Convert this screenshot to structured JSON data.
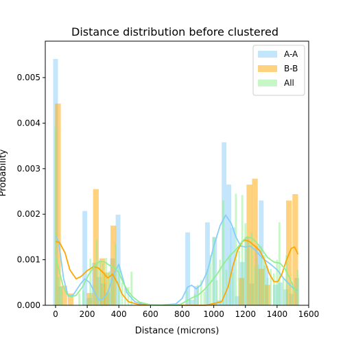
{
  "chart_data": {
    "type": "bar",
    "title": "Distance distribution before clustered",
    "xlabel": "Distance (microns)",
    "ylabel": "Probability",
    "xlim": [
      -65,
      1600
    ],
    "ylim": [
      0,
      0.0058
    ],
    "xticks": [
      0,
      200,
      400,
      600,
      800,
      1000,
      1200,
      1400,
      1600
    ],
    "xtick_labels": [
      "0",
      "200",
      "400",
      "600",
      "800",
      "1000",
      "1200",
      "1400",
      "1600"
    ],
    "yticks": [
      0,
      0.001,
      0.002,
      0.003,
      0.004,
      0.005
    ],
    "ytick_labels": [
      "0.000",
      "0.001",
      "0.002",
      "0.003",
      "0.004",
      "0.005"
    ],
    "legend_position": "top-right",
    "series": [
      {
        "name": "A-A",
        "color": "#87CEFA",
        "bar_width": 30,
        "bars": [
          {
            "x": 0,
            "height": 0.00541
          },
          {
            "x": 30,
            "height": 0.00041
          },
          {
            "x": 185,
            "height": 0.00207
          },
          {
            "x": 215,
            "height": 0.00016
          },
          {
            "x": 245,
            "height": 0.00093
          },
          {
            "x": 275,
            "height": 0.00062
          },
          {
            "x": 300,
            "height": 0.00048
          },
          {
            "x": 330,
            "height": 0.00028
          },
          {
            "x": 360,
            "height": 0.00103
          },
          {
            "x": 395,
            "height": 0.00199
          },
          {
            "x": 835,
            "height": 0.0016
          },
          {
            "x": 860,
            "height": 0.00012
          },
          {
            "x": 890,
            "height": 0.00042
          },
          {
            "x": 960,
            "height": 0.00182
          },
          {
            "x": 1005,
            "height": 0.0015
          },
          {
            "x": 1035,
            "height": 0.00011
          },
          {
            "x": 1065,
            "height": 0.00358
          },
          {
            "x": 1095,
            "height": 0.00265
          },
          {
            "x": 1120,
            "height": 0.00171
          },
          {
            "x": 1150,
            "height": 0.0002
          },
          {
            "x": 1180,
            "height": 0.00095
          },
          {
            "x": 1210,
            "height": 0.0015
          },
          {
            "x": 1240,
            "height": 0.00048
          },
          {
            "x": 1275,
            "height": 0.0013
          },
          {
            "x": 1300,
            "height": 0.0023
          },
          {
            "x": 1330,
            "height": 0.00087
          },
          {
            "x": 1390,
            "height": 0.00045
          },
          {
            "x": 1420,
            "height": 0.0005
          },
          {
            "x": 1455,
            "height": 0.00035
          },
          {
            "x": 1490,
            "height": 0.00025
          },
          {
            "x": 1525,
            "height": 0.0006
          }
        ],
        "curve": [
          [
            0,
            0.00152
          ],
          [
            20,
            0.0014
          ],
          [
            50,
            0.0006
          ],
          [
            80,
            0.0002
          ],
          [
            110,
            0.00022
          ],
          [
            160,
            0.00048
          ],
          [
            185,
            0.00058
          ],
          [
            215,
            0.0005
          ],
          [
            245,
            0.0003
          ],
          [
            270,
            0.00012
          ],
          [
            300,
            0.00014
          ],
          [
            330,
            0.00028
          ],
          [
            370,
            0.0007
          ],
          [
            400,
            0.0009
          ],
          [
            420,
            0.00065
          ],
          [
            450,
            0.00028
          ],
          [
            500,
            8e-05
          ],
          [
            560,
            1e-05
          ],
          [
            650,
            0.0
          ],
          [
            760,
            3e-05
          ],
          [
            800,
            0.00015
          ],
          [
            835,
            0.0004
          ],
          [
            860,
            0.00044
          ],
          [
            890,
            0.00036
          ],
          [
            920,
            0.00045
          ],
          [
            960,
            0.00075
          ],
          [
            1000,
            0.0013
          ],
          [
            1040,
            0.00175
          ],
          [
            1075,
            0.00198
          ],
          [
            1110,
            0.0018
          ],
          [
            1140,
            0.0015
          ],
          [
            1170,
            0.0013
          ],
          [
            1200,
            0.00128
          ],
          [
            1230,
            0.0013
          ],
          [
            1260,
            0.00122
          ],
          [
            1290,
            0.0011
          ],
          [
            1320,
            0.001
          ],
          [
            1360,
            0.0009
          ],
          [
            1400,
            0.00078
          ],
          [
            1440,
            0.0006
          ],
          [
            1480,
            0.00045
          ],
          [
            1510,
            0.00035
          ],
          [
            1530,
            0.00032
          ]
        ]
      },
      {
        "name": "B-B",
        "color": "#FFA500",
        "bar_width": 36,
        "bars": [
          {
            "x": 15,
            "height": 0.00443
          },
          {
            "x": 55,
            "height": 0.00043
          },
          {
            "x": 95,
            "height": 0.00026
          },
          {
            "x": 215,
            "height": 0.00027
          },
          {
            "x": 255,
            "height": 0.00255
          },
          {
            "x": 295,
            "height": 0.00103
          },
          {
            "x": 325,
            "height": 0.00072
          },
          {
            "x": 365,
            "height": 0.00175
          },
          {
            "x": 1000,
            "height": 3e-05
          },
          {
            "x": 1175,
            "height": 0.0006
          },
          {
            "x": 1225,
            "height": 0.00265
          },
          {
            "x": 1260,
            "height": 0.00278
          },
          {
            "x": 1300,
            "height": 0.0008
          },
          {
            "x": 1340,
            "height": 0.00045
          },
          {
            "x": 1475,
            "height": 0.0023
          },
          {
            "x": 1515,
            "height": 0.00244
          }
        ],
        "curve": [
          [
            0,
            0.0014
          ],
          [
            25,
            0.00138
          ],
          [
            60,
            0.00115
          ],
          [
            90,
            0.00078
          ],
          [
            130,
            0.00058
          ],
          [
            160,
            0.00063
          ],
          [
            200,
            0.00076
          ],
          [
            240,
            0.00085
          ],
          [
            270,
            0.00082
          ],
          [
            300,
            0.00072
          ],
          [
            330,
            0.0006
          ],
          [
            360,
            0.00068
          ],
          [
            390,
            0.0005
          ],
          [
            420,
            0.00025
          ],
          [
            460,
            8e-05
          ],
          [
            520,
            2e-05
          ],
          [
            700,
            0.0
          ],
          [
            950,
            0.0
          ],
          [
            1050,
            8e-05
          ],
          [
            1090,
            0.0004
          ],
          [
            1120,
            0.00085
          ],
          [
            1150,
            0.0012
          ],
          [
            1180,
            0.0014
          ],
          [
            1200,
            0.00143
          ],
          [
            1225,
            0.0014
          ],
          [
            1260,
            0.0013
          ],
          [
            1290,
            0.0012
          ],
          [
            1320,
            0.001
          ],
          [
            1350,
            0.0007
          ],
          [
            1380,
            0.00052
          ],
          [
            1405,
            0.00052
          ],
          [
            1430,
            0.00068
          ],
          [
            1460,
            0.001
          ],
          [
            1490,
            0.00125
          ],
          [
            1510,
            0.00128
          ],
          [
            1525,
            0.00118
          ],
          [
            1532,
            0.00112
          ]
        ]
      },
      {
        "name": "All",
        "color": "#90EE90",
        "bar_width": 12,
        "bars": [
          {
            "x": 0,
            "height": 0.00392
          },
          {
            "x": 20,
            "height": 0.00062
          },
          {
            "x": 35,
            "height": 0.00042
          },
          {
            "x": 150,
            "height": 0.00026
          },
          {
            "x": 175,
            "height": 0.00033
          },
          {
            "x": 200,
            "height": 0.00013
          },
          {
            "x": 220,
            "height": 0.00102
          },
          {
            "x": 240,
            "height": 0.00046
          },
          {
            "x": 260,
            "height": 0.00145
          },
          {
            "x": 280,
            "height": 0.00095
          },
          {
            "x": 300,
            "height": 0.00092
          },
          {
            "x": 320,
            "height": 0.00104
          },
          {
            "x": 340,
            "height": 0.00075
          },
          {
            "x": 360,
            "height": 0.00068
          },
          {
            "x": 380,
            "height": 0.00135
          },
          {
            "x": 400,
            "height": 0.0009
          },
          {
            "x": 420,
            "height": 0.0005
          },
          {
            "x": 440,
            "height": 0.00042
          },
          {
            "x": 460,
            "height": 0.0004
          },
          {
            "x": 480,
            "height": 0.00074
          },
          {
            "x": 830,
            "height": 0.00032
          },
          {
            "x": 850,
            "height": 0.00015
          },
          {
            "x": 880,
            "height": 0.00025
          },
          {
            "x": 900,
            "height": 0.00045
          },
          {
            "x": 920,
            "height": 0.00055
          },
          {
            "x": 940,
            "height": 0.0003
          },
          {
            "x": 960,
            "height": 0.0008
          },
          {
            "x": 980,
            "height": 0.0011
          },
          {
            "x": 1000,
            "height": 0.0015
          },
          {
            "x": 1020,
            "height": 0.00055
          },
          {
            "x": 1040,
            "height": 0.001
          },
          {
            "x": 1060,
            "height": 0.0023
          },
          {
            "x": 1080,
            "height": 0.00078
          },
          {
            "x": 1100,
            "height": 0.00105
          },
          {
            "x": 1120,
            "height": 0.00072
          },
          {
            "x": 1140,
            "height": 0.00245
          },
          {
            "x": 1160,
            "height": 0.0012
          },
          {
            "x": 1180,
            "height": 0.00242
          },
          {
            "x": 1200,
            "height": 0.0018
          },
          {
            "x": 1220,
            "height": 0.0014
          },
          {
            "x": 1240,
            "height": 0.0016
          },
          {
            "x": 1260,
            "height": 0.00085
          },
          {
            "x": 1280,
            "height": 0.0009
          },
          {
            "x": 1300,
            "height": 0.0013
          },
          {
            "x": 1320,
            "height": 0.0011
          },
          {
            "x": 1340,
            "height": 0.0006
          },
          {
            "x": 1360,
            "height": 0.0008
          },
          {
            "x": 1380,
            "height": 0.0007
          },
          {
            "x": 1400,
            "height": 0.001
          },
          {
            "x": 1415,
            "height": 0.00182
          },
          {
            "x": 1440,
            "height": 0.0006
          },
          {
            "x": 1460,
            "height": 0.0011
          },
          {
            "x": 1480,
            "height": 0.0005
          },
          {
            "x": 1500,
            "height": 0.00045
          },
          {
            "x": 1530,
            "height": 0.00078
          }
        ],
        "curve": [
          [
            0,
            0.00105
          ],
          [
            20,
            0.0008
          ],
          [
            45,
            0.00045
          ],
          [
            70,
            0.00025
          ],
          [
            100,
            0.00018
          ],
          [
            130,
            0.00022
          ],
          [
            170,
            0.0004
          ],
          [
            210,
            0.00068
          ],
          [
            250,
            0.00088
          ],
          [
            280,
            0.00097
          ],
          [
            310,
            0.00095
          ],
          [
            340,
            0.00088
          ],
          [
            370,
            0.00082
          ],
          [
            400,
            0.00072
          ],
          [
            430,
            0.00048
          ],
          [
            460,
            0.0003
          ],
          [
            490,
            0.00018
          ],
          [
            530,
            7e-05
          ],
          [
            600,
            1e-05
          ],
          [
            700,
            0.0
          ],
          [
            790,
            2e-05
          ],
          [
            830,
            0.0001
          ],
          [
            860,
            0.00016
          ],
          [
            900,
            0.00022
          ],
          [
            940,
            0.00034
          ],
          [
            980,
            0.0005
          ],
          [
            1020,
            0.00068
          ],
          [
            1060,
            0.0009
          ],
          [
            1100,
            0.00108
          ],
          [
            1140,
            0.00122
          ],
          [
            1180,
            0.0014
          ],
          [
            1210,
            0.0015
          ],
          [
            1240,
            0.00148
          ],
          [
            1270,
            0.00138
          ],
          [
            1300,
            0.00125
          ],
          [
            1340,
            0.00105
          ],
          [
            1380,
            0.00095
          ],
          [
            1420,
            0.00092
          ],
          [
            1450,
            0.0008
          ],
          [
            1480,
            0.0006
          ],
          [
            1510,
            0.00035
          ],
          [
            1532,
            0.00025
          ]
        ]
      }
    ]
  }
}
